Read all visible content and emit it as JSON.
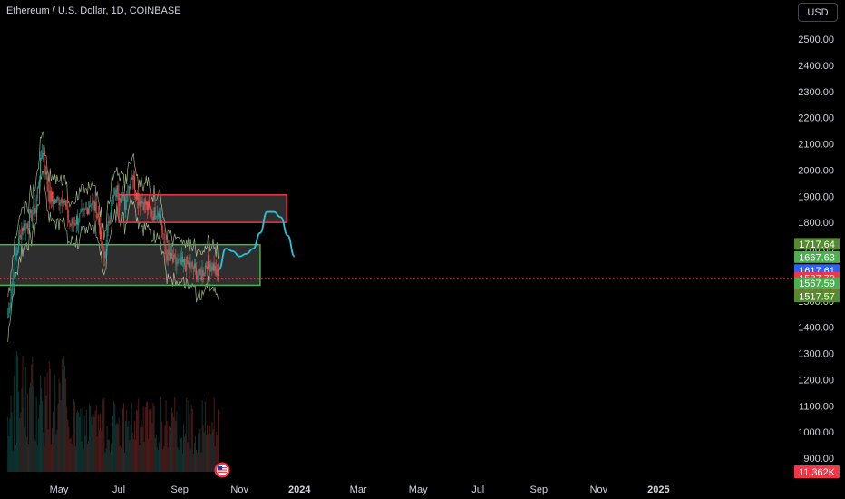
{
  "header": {
    "symbol_title": "Ethereum / U.S. Dollar, 1D, COINBASE",
    "currency_button": "USD"
  },
  "chart_data": {
    "type": "line",
    "title": "Ethereum / U.S. Dollar, 1D, COINBASE",
    "xlabel": "",
    "ylabel": "",
    "ylim": [
      820,
      2580
    ],
    "y_ticks": [
      2500,
      2400,
      2300,
      2200,
      2100,
      2000,
      1900,
      1800,
      1700,
      1600,
      1500,
      1400,
      1300,
      1200,
      1100,
      1000,
      900
    ],
    "x_ticks": [
      {
        "label": "May",
        "date": "2023-05-01"
      },
      {
        "label": "Jul",
        "date": "2023-07-01"
      },
      {
        "label": "Sep",
        "date": "2023-09-01"
      },
      {
        "label": "Nov",
        "date": "2023-11-01"
      },
      {
        "label": "2024",
        "date": "2024-01-01"
      },
      {
        "label": "Mar",
        "date": "2024-03-01"
      },
      {
        "label": "May",
        "date": "2024-05-01"
      },
      {
        "label": "Jul",
        "date": "2024-07-01"
      },
      {
        "label": "Sep",
        "date": "2024-09-01"
      },
      {
        "label": "Nov",
        "date": "2024-11-01"
      },
      {
        "label": "2025",
        "date": "2025-01-01"
      }
    ],
    "price_series": {
      "x": [
        "2023-03-10",
        "2023-03-17",
        "2023-03-24",
        "2023-03-31",
        "2023-04-07",
        "2023-04-14",
        "2023-04-21",
        "2023-04-28",
        "2023-05-05",
        "2023-05-12",
        "2023-05-19",
        "2023-05-26",
        "2023-06-02",
        "2023-06-09",
        "2023-06-16",
        "2023-06-23",
        "2023-06-30",
        "2023-07-07",
        "2023-07-14",
        "2023-07-21",
        "2023-07-28",
        "2023-08-04",
        "2023-08-11",
        "2023-08-18",
        "2023-08-25",
        "2023-09-01",
        "2023-09-08",
        "2023-09-15",
        "2023-09-22",
        "2023-09-29",
        "2023-10-06",
        "2023-10-12"
      ],
      "y": [
        1440,
        1650,
        1780,
        1800,
        1860,
        2080,
        1900,
        1880,
        1900,
        1790,
        1810,
        1830,
        1880,
        1840,
        1660,
        1870,
        1930,
        1870,
        1990,
        1890,
        1870,
        1830,
        1850,
        1680,
        1650,
        1640,
        1640,
        1625,
        1590,
        1650,
        1630,
        1570
      ]
    },
    "supply_zone": {
      "x_start": "2023-07-01",
      "x_end": "2023-12-19",
      "y_low": 1800,
      "y_high": 1905,
      "color": "#f23645"
    },
    "demand_zone": {
      "x_start": "2023-03-01",
      "x_end": "2023-11-22",
      "y_low": 1560,
      "y_high": 1715,
      "color": "#4caf50"
    },
    "projection_path": {
      "x": [
        "2023-10-11",
        "2023-10-18",
        "2023-10-25",
        "2023-11-01",
        "2023-11-08",
        "2023-11-15",
        "2023-11-22",
        "2023-11-29",
        "2023-12-06",
        "2023-12-13",
        "2023-12-20",
        "2023-12-27"
      ],
      "y": [
        1620,
        1700,
        1690,
        1670,
        1680,
        1700,
        1760,
        1840,
        1840,
        1820,
        1750,
        1670
      ],
      "color": "#26c6da"
    },
    "current_price_line": {
      "y": 1587.79,
      "color": "#f23645"
    },
    "price_labels": [
      {
        "text": "1717.64",
        "y": 1717.64,
        "color": "#558b2f"
      },
      {
        "text": "1667.63",
        "y": 1667.63,
        "color": "#4caf50"
      },
      {
        "text": "1617.61",
        "y": 1617.61,
        "color": "#2962ff"
      },
      {
        "text": "1587.79",
        "y": 1587.79,
        "color": "#f23645"
      },
      {
        "text": "17:59:14",
        "y": 1560,
        "color": "#f23645"
      },
      {
        "text": "1567.59",
        "y": 1567.59,
        "color": "#4caf50"
      },
      {
        "text": "1517.57",
        "y": 1517.57,
        "color": "#558b2f"
      }
    ],
    "volume_label": {
      "text": "11.362K",
      "color": "#f23645"
    },
    "colors": {
      "up": "#26a69a",
      "down": "#ef5350",
      "band": "#c5e1a5",
      "axis_text": "#d1d4dc",
      "background": "#000000"
    }
  }
}
